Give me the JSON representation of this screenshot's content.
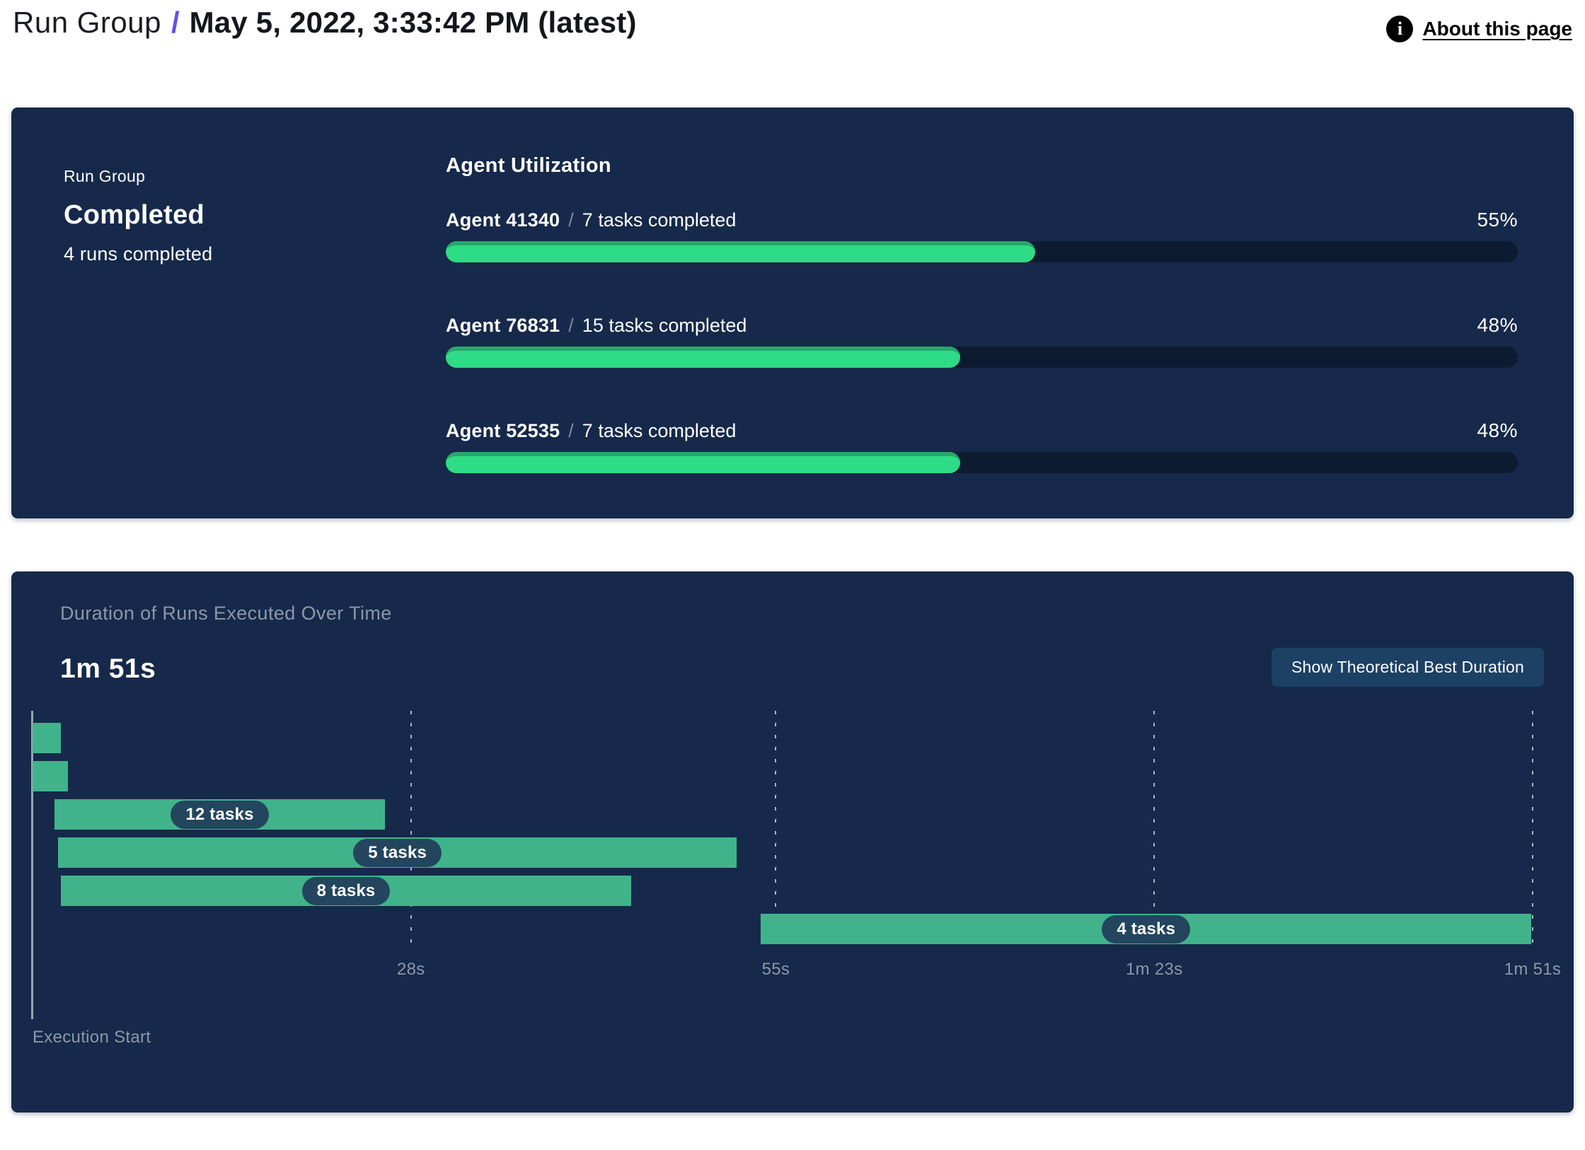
{
  "header": {
    "breadcrumb_root": "Run Group",
    "separator": "/",
    "title": "May 5, 2022, 3:33:42 PM (latest)",
    "info_icon": "i",
    "about_link": "About this page"
  },
  "status_panel": {
    "label": "Run Group",
    "status": "Completed",
    "runs_summary": "4 runs completed"
  },
  "agent_utilization": {
    "title": "Agent Utilization",
    "agents": [
      {
        "name": "Agent 41340",
        "separator": "/",
        "tasks": "7 tasks completed",
        "pct": 55,
        "pct_label": "55%"
      },
      {
        "name": "Agent 76831",
        "separator": "/",
        "tasks": "15 tasks completed",
        "pct": 48,
        "pct_label": "48%"
      },
      {
        "name": "Agent 52535",
        "separator": "/",
        "tasks": "7 tasks completed",
        "pct": 48,
        "pct_label": "48%"
      }
    ]
  },
  "duration_panel": {
    "title": "Duration of Runs Executed Over Time",
    "total_duration": "1m 51s",
    "button_label": "Show Theoretical Best Duration",
    "execution_start_label": "Execution Start"
  },
  "chart_data": {
    "type": "gantt",
    "title": "Duration of Runs Executed Over Time",
    "total_duration_label": "1m 51s",
    "x_axis_label": "Execution Start",
    "x_max_seconds": 111,
    "grid": "dashed-vertical",
    "x_ticks": [
      {
        "label": "28s",
        "seconds": 28
      },
      {
        "label": "55s",
        "seconds": 55
      },
      {
        "label": "1m 23s",
        "seconds": 83
      },
      {
        "label": "1m 51s",
        "seconds": 111
      }
    ],
    "runs": [
      {
        "row": 0,
        "start_seconds": 0,
        "end_seconds": 2.1,
        "tasks": null,
        "label": ""
      },
      {
        "row": 1,
        "start_seconds": 0,
        "end_seconds": 2.6,
        "tasks": null,
        "label": ""
      },
      {
        "row": 2,
        "start_seconds": 1.6,
        "end_seconds": 26.1,
        "tasks": 12,
        "label": "12 tasks"
      },
      {
        "row": 3,
        "start_seconds": 1.9,
        "end_seconds": 52.1,
        "tasks": 5,
        "label": "5 tasks"
      },
      {
        "row": 4,
        "start_seconds": 2.1,
        "end_seconds": 44.3,
        "tasks": 8,
        "label": "8 tasks"
      },
      {
        "row": 5,
        "start_seconds": 53.9,
        "end_seconds": 110.9,
        "tasks": 4,
        "label": "4 tasks"
      }
    ]
  },
  "colors": {
    "panel_bg": "#16294a",
    "progress_track": "#0d1b31",
    "progress_fill": "#2fdc86",
    "progress_fill_edge": "#28a76b",
    "gantt_bar": "#41b38a",
    "badge_bg": "#23455e",
    "breadcrumb_slash": "#6450f0",
    "muted_text": "#8d97ab",
    "button_bg": "#1d4065"
  }
}
